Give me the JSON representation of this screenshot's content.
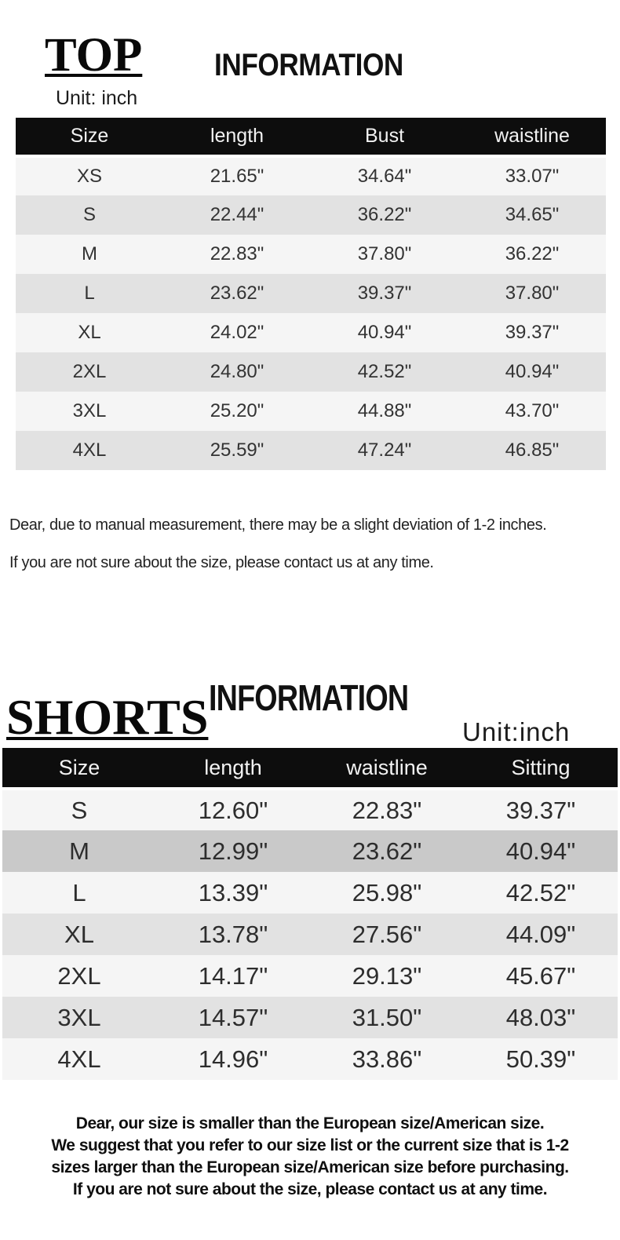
{
  "top": {
    "title": "TOP",
    "information": "INFORMATION",
    "unit": "Unit: inch",
    "table": {
      "headers": [
        "Size",
        "length",
        "Bust",
        "waistline"
      ],
      "rows": [
        [
          "XS",
          "21.65\"",
          "34.64\"",
          "33.07\""
        ],
        [
          "S",
          "22.44\"",
          "36.22\"",
          "34.65\""
        ],
        [
          "M",
          "22.83\"",
          "37.80\"",
          "36.22\""
        ],
        [
          "L",
          "23.62\"",
          "39.37\"",
          "37.80\""
        ],
        [
          "XL",
          "24.02\"",
          "40.94\"",
          "39.37\""
        ],
        [
          "2XL",
          "24.80\"",
          "42.52\"",
          "40.94\""
        ],
        [
          "3XL",
          "25.20\"",
          "44.88\"",
          "43.70\""
        ],
        [
          "4XL",
          "25.59\"",
          "47.24\"",
          "46.85\""
        ]
      ]
    },
    "notes": [
      "Dear, due to manual measurement, there may be a slight deviation of 1-2 inches.",
      "If you are not sure about the size, please contact us at any time."
    ]
  },
  "shorts": {
    "title": "SHORTS",
    "information": "INFORMATION",
    "unit": "Unit:inch",
    "table": {
      "headers": [
        "Size",
        "length",
        "waistline",
        "Sitting"
      ],
      "rows": [
        [
          "S",
          "12.60\"",
          "22.83\"",
          "39.37\""
        ],
        [
          "M",
          "12.99\"",
          "23.62\"",
          "40.94\""
        ],
        [
          "L",
          "13.39\"",
          "25.98\"",
          "42.52\""
        ],
        [
          "XL",
          "13.78\"",
          "27.56\"",
          "44.09\""
        ],
        [
          "2XL",
          "14.17\"",
          "29.13\"",
          "45.67\""
        ],
        [
          "3XL",
          "14.57\"",
          "31.50\"",
          "48.03\""
        ],
        [
          "4XL",
          "14.96\"",
          "33.86\"",
          "50.39\""
        ]
      ]
    },
    "notes": [
      "Dear, our size is smaller than the European size/American size.",
      "We suggest that you refer to our size list or the current size that is 1-2",
      "sizes larger than the European size/American size before purchasing.",
      "If you are not sure about the size, please contact us at any time."
    ]
  },
  "colors": {
    "header_bg": "#0d0d0d",
    "header_text": "#f2f2f2",
    "row_light": "#f5f5f5",
    "row_gray": "#e2e2e2",
    "row_dark_gray": "#c9c9c9"
  }
}
